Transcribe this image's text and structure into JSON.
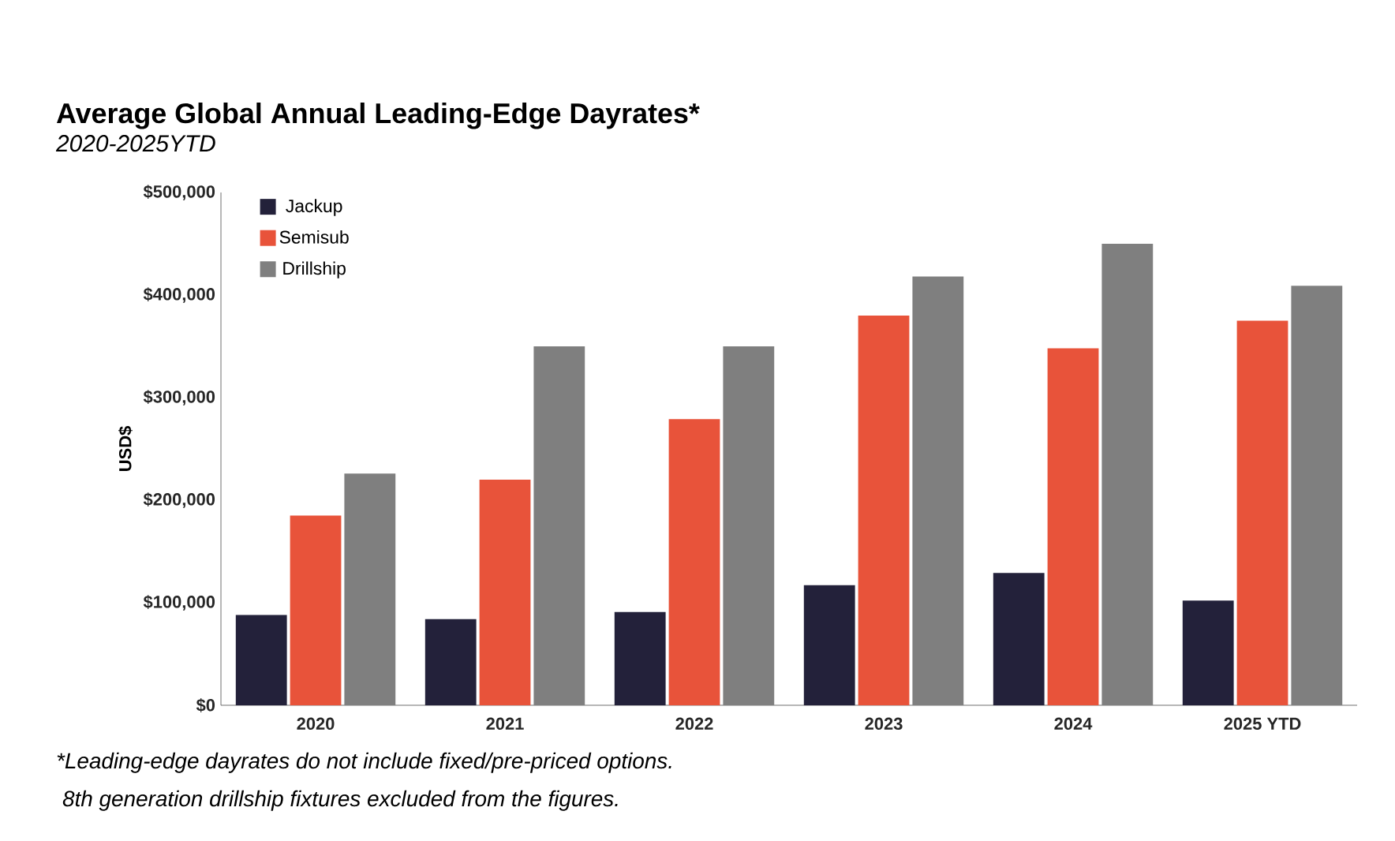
{
  "chart_data": {
    "type": "bar",
    "title": "Average Global Annual Leading-Edge Dayrates*",
    "subtitle": "2020-2025YTD",
    "ylabel": "USD$",
    "categories": [
      "2020",
      "2021",
      "2022",
      "2023",
      "2024",
      "2025 YTD"
    ],
    "series": [
      {
        "name": "Jackup",
        "color": "#23213a",
        "values": [
          88000,
          84000,
          91000,
          117000,
          129000,
          102000
        ]
      },
      {
        "name": "Semisub",
        "color": "#e8533a",
        "values": [
          185000,
          220000,
          279000,
          380000,
          348000,
          375000
        ]
      },
      {
        "name": "Drillship",
        "color": "#7f7f7f",
        "values": [
          226000,
          350000,
          350000,
          418000,
          450000,
          409000
        ]
      }
    ],
    "ylim": [
      0,
      500000
    ],
    "yticks": [
      {
        "value": 0,
        "label": "$0"
      },
      {
        "value": 100000,
        "label": "$100,000"
      },
      {
        "value": 200000,
        "label": "$200,000"
      },
      {
        "value": 300000,
        "label": "$300,000"
      },
      {
        "value": 400000,
        "label": "$400,000"
      },
      {
        "value": 500000,
        "label": "$500,000"
      }
    ],
    "grid": false,
    "legend": "top left",
    "annotations": [
      "*Leading-edge dayrates do not include fixed/pre-priced options.",
      "8th generation drillship fixtures excluded from the figures."
    ]
  }
}
